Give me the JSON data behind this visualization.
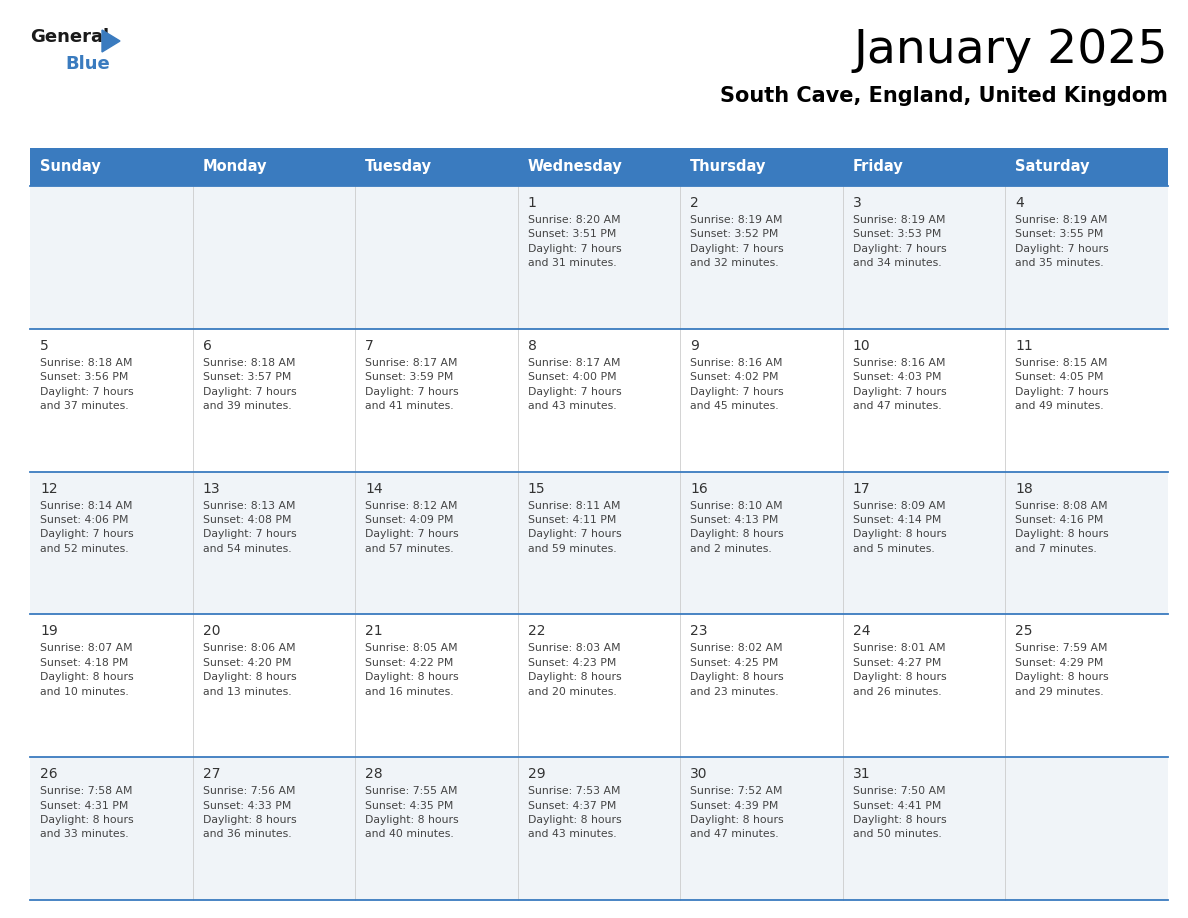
{
  "title": "January 2025",
  "subtitle": "South Cave, England, United Kingdom",
  "header_bg_color": "#3a7bbf",
  "header_text_color": "#ffffff",
  "cell_bg_even": "#ffffff",
  "cell_bg_odd": "#f0f4f8",
  "cell_text_color": "#444444",
  "day_num_color": "#333333",
  "grid_line_color": "#3a7bbf",
  "days_of_week": [
    "Sunday",
    "Monday",
    "Tuesday",
    "Wednesday",
    "Thursday",
    "Friday",
    "Saturday"
  ],
  "calendar_data": [
    [
      {
        "day": "",
        "sunrise": "",
        "sunset": "",
        "daylight": ""
      },
      {
        "day": "",
        "sunrise": "",
        "sunset": "",
        "daylight": ""
      },
      {
        "day": "",
        "sunrise": "",
        "sunset": "",
        "daylight": ""
      },
      {
        "day": "1",
        "sunrise": "8:20 AM",
        "sunset": "3:51 PM",
        "daylight": "7 hours\nand 31 minutes."
      },
      {
        "day": "2",
        "sunrise": "8:19 AM",
        "sunset": "3:52 PM",
        "daylight": "7 hours\nand 32 minutes."
      },
      {
        "day": "3",
        "sunrise": "8:19 AM",
        "sunset": "3:53 PM",
        "daylight": "7 hours\nand 34 minutes."
      },
      {
        "day": "4",
        "sunrise": "8:19 AM",
        "sunset": "3:55 PM",
        "daylight": "7 hours\nand 35 minutes."
      }
    ],
    [
      {
        "day": "5",
        "sunrise": "8:18 AM",
        "sunset": "3:56 PM",
        "daylight": "7 hours\nand 37 minutes."
      },
      {
        "day": "6",
        "sunrise": "8:18 AM",
        "sunset": "3:57 PM",
        "daylight": "7 hours\nand 39 minutes."
      },
      {
        "day": "7",
        "sunrise": "8:17 AM",
        "sunset": "3:59 PM",
        "daylight": "7 hours\nand 41 minutes."
      },
      {
        "day": "8",
        "sunrise": "8:17 AM",
        "sunset": "4:00 PM",
        "daylight": "7 hours\nand 43 minutes."
      },
      {
        "day": "9",
        "sunrise": "8:16 AM",
        "sunset": "4:02 PM",
        "daylight": "7 hours\nand 45 minutes."
      },
      {
        "day": "10",
        "sunrise": "8:16 AM",
        "sunset": "4:03 PM",
        "daylight": "7 hours\nand 47 minutes."
      },
      {
        "day": "11",
        "sunrise": "8:15 AM",
        "sunset": "4:05 PM",
        "daylight": "7 hours\nand 49 minutes."
      }
    ],
    [
      {
        "day": "12",
        "sunrise": "8:14 AM",
        "sunset": "4:06 PM",
        "daylight": "7 hours\nand 52 minutes."
      },
      {
        "day": "13",
        "sunrise": "8:13 AM",
        "sunset": "4:08 PM",
        "daylight": "7 hours\nand 54 minutes."
      },
      {
        "day": "14",
        "sunrise": "8:12 AM",
        "sunset": "4:09 PM",
        "daylight": "7 hours\nand 57 minutes."
      },
      {
        "day": "15",
        "sunrise": "8:11 AM",
        "sunset": "4:11 PM",
        "daylight": "7 hours\nand 59 minutes."
      },
      {
        "day": "16",
        "sunrise": "8:10 AM",
        "sunset": "4:13 PM",
        "daylight": "8 hours\nand 2 minutes."
      },
      {
        "day": "17",
        "sunrise": "8:09 AM",
        "sunset": "4:14 PM",
        "daylight": "8 hours\nand 5 minutes."
      },
      {
        "day": "18",
        "sunrise": "8:08 AM",
        "sunset": "4:16 PM",
        "daylight": "8 hours\nand 7 minutes."
      }
    ],
    [
      {
        "day": "19",
        "sunrise": "8:07 AM",
        "sunset": "4:18 PM",
        "daylight": "8 hours\nand 10 minutes."
      },
      {
        "day": "20",
        "sunrise": "8:06 AM",
        "sunset": "4:20 PM",
        "daylight": "8 hours\nand 13 minutes."
      },
      {
        "day": "21",
        "sunrise": "8:05 AM",
        "sunset": "4:22 PM",
        "daylight": "8 hours\nand 16 minutes."
      },
      {
        "day": "22",
        "sunrise": "8:03 AM",
        "sunset": "4:23 PM",
        "daylight": "8 hours\nand 20 minutes."
      },
      {
        "day": "23",
        "sunrise": "8:02 AM",
        "sunset": "4:25 PM",
        "daylight": "8 hours\nand 23 minutes."
      },
      {
        "day": "24",
        "sunrise": "8:01 AM",
        "sunset": "4:27 PM",
        "daylight": "8 hours\nand 26 minutes."
      },
      {
        "day": "25",
        "sunrise": "7:59 AM",
        "sunset": "4:29 PM",
        "daylight": "8 hours\nand 29 minutes."
      }
    ],
    [
      {
        "day": "26",
        "sunrise": "7:58 AM",
        "sunset": "4:31 PM",
        "daylight": "8 hours\nand 33 minutes."
      },
      {
        "day": "27",
        "sunrise": "7:56 AM",
        "sunset": "4:33 PM",
        "daylight": "8 hours\nand 36 minutes."
      },
      {
        "day": "28",
        "sunrise": "7:55 AM",
        "sunset": "4:35 PM",
        "daylight": "8 hours\nand 40 minutes."
      },
      {
        "day": "29",
        "sunrise": "7:53 AM",
        "sunset": "4:37 PM",
        "daylight": "8 hours\nand 43 minutes."
      },
      {
        "day": "30",
        "sunrise": "7:52 AM",
        "sunset": "4:39 PM",
        "daylight": "8 hours\nand 47 minutes."
      },
      {
        "day": "31",
        "sunrise": "7:50 AM",
        "sunset": "4:41 PM",
        "daylight": "8 hours\nand 50 minutes."
      },
      {
        "day": "",
        "sunrise": "",
        "sunset": "",
        "daylight": ""
      }
    ]
  ]
}
